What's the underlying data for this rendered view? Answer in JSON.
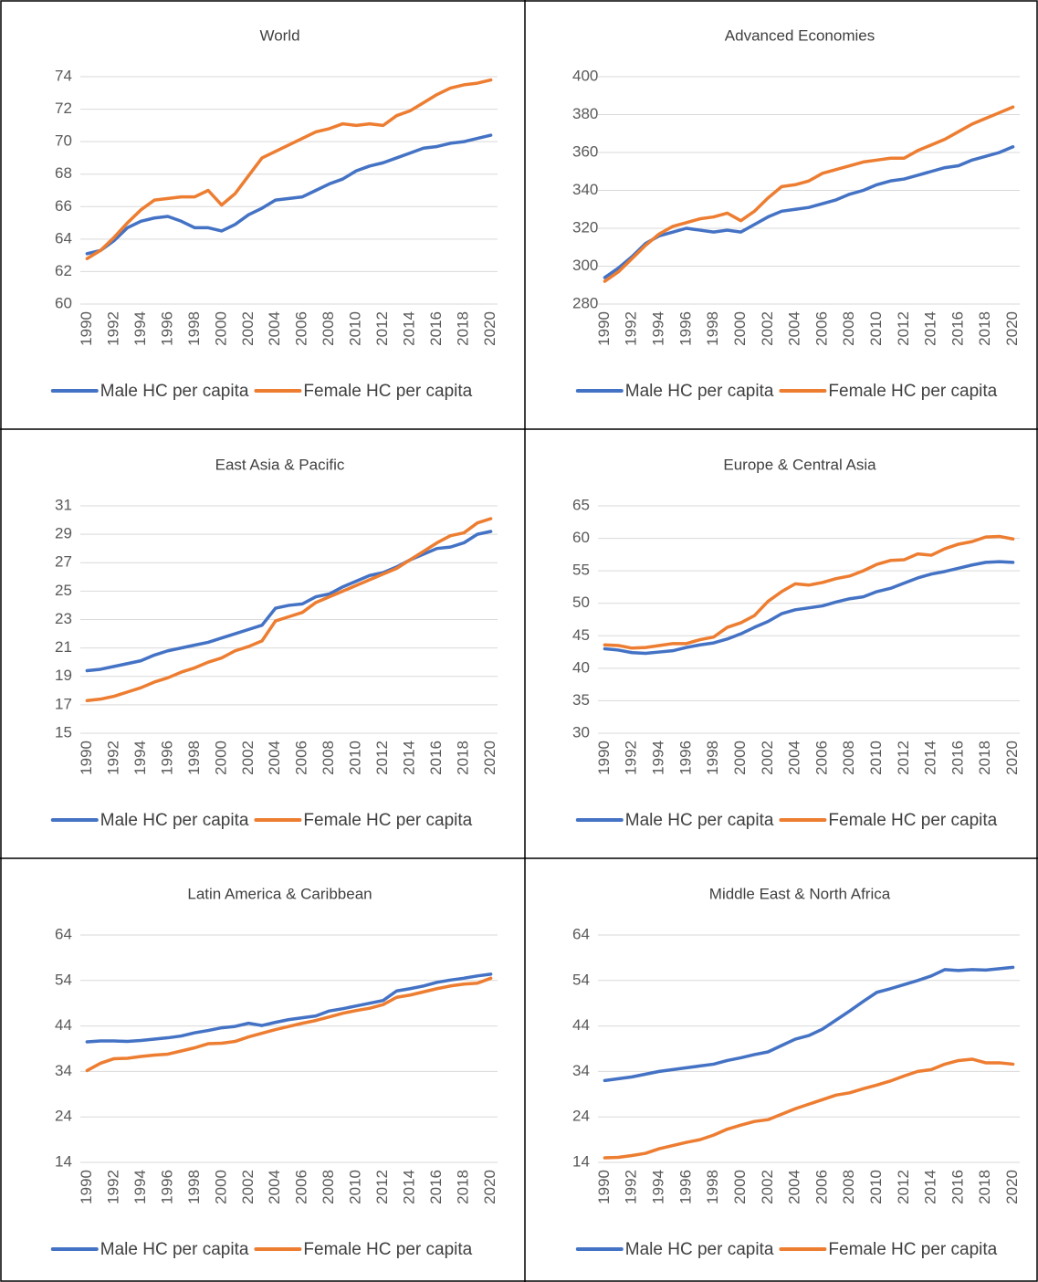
{
  "chart_data": [
    {
      "type": "line",
      "title": "World",
      "categories": [
        "1990",
        null,
        "1992",
        null,
        "1994",
        null,
        "1996",
        null,
        "1998",
        null,
        "2000",
        null,
        "2002",
        null,
        "2004",
        null,
        "2006",
        null,
        "2008",
        null,
        "2010",
        null,
        "2012",
        null,
        "2014",
        null,
        "2016",
        null,
        "2018",
        null,
        "2020"
      ],
      "series": [
        {
          "name": "Male HC per capita",
          "color": "#4472c4",
          "values": [
            63.1,
            63.3,
            63.9,
            64.7,
            65.1,
            65.3,
            65.4,
            65.1,
            64.7,
            64.7,
            64.5,
            64.9,
            65.5,
            65.9,
            66.4,
            66.5,
            66.6,
            67.0,
            67.4,
            67.7,
            68.2,
            68.5,
            68.7,
            69.0,
            69.3,
            69.6,
            69.7,
            69.9,
            70.0,
            70.2,
            70.4
          ]
        },
        {
          "name": "Female HC per capita",
          "color": "#ed7d31",
          "values": [
            62.8,
            63.3,
            64.1,
            65.0,
            65.8,
            66.4,
            66.5,
            66.6,
            66.6,
            67.0,
            66.1,
            66.8,
            67.9,
            69.0,
            69.4,
            69.8,
            70.2,
            70.6,
            70.8,
            71.1,
            71.0,
            71.1,
            71.0,
            71.6,
            71.9,
            72.4,
            72.9,
            73.3,
            73.5,
            73.6,
            73.8
          ]
        }
      ],
      "ylim": [
        60,
        74
      ],
      "yticks": [
        60,
        62,
        64,
        66,
        68,
        70,
        72,
        74
      ],
      "grid": true,
      "legend": "bottom"
    },
    {
      "type": "line",
      "title": "Advanced Economies",
      "categories": [
        "1990",
        null,
        "1992",
        null,
        "1994",
        null,
        "1996",
        null,
        "1998",
        null,
        "2000",
        null,
        "2002",
        null,
        "2004",
        null,
        "2006",
        null,
        "2008",
        null,
        "2010",
        null,
        "2012",
        null,
        "2014",
        null,
        "2016",
        null,
        "2018",
        null,
        "2020"
      ],
      "series": [
        {
          "name": "Male HC per capita",
          "color": "#4472c4",
          "values": [
            294,
            299,
            305,
            312,
            316,
            318,
            320,
            319,
            318,
            319,
            318,
            322,
            326,
            329,
            330,
            331,
            333,
            335,
            338,
            340,
            343,
            345,
            346,
            348,
            350,
            352,
            353,
            356,
            358,
            360,
            363
          ]
        },
        {
          "name": "Female HC per capita",
          "color": "#ed7d31",
          "values": [
            292,
            297,
            304,
            311,
            317,
            321,
            323,
            325,
            326,
            328,
            324,
            329,
            336,
            342,
            343,
            345,
            349,
            351,
            353,
            355,
            356,
            357,
            357,
            361,
            364,
            367,
            371,
            375,
            378,
            381,
            384
          ]
        }
      ],
      "ylim": [
        280,
        400
      ],
      "yticks": [
        280,
        300,
        320,
        340,
        360,
        380,
        400
      ],
      "grid": true,
      "legend": "bottom"
    },
    {
      "type": "line",
      "title": "East Asia & Pacific",
      "categories": [
        "1990",
        null,
        "1992",
        null,
        "1994",
        null,
        "1996",
        null,
        "1998",
        null,
        "2000",
        null,
        "2002",
        null,
        "2004",
        null,
        "2006",
        null,
        "2008",
        null,
        "2010",
        null,
        "2012",
        null,
        "2014",
        null,
        "2016",
        null,
        "2018",
        null,
        "2020"
      ],
      "series": [
        {
          "name": "Male HC per capita",
          "color": "#4472c4",
          "values": [
            19.4,
            19.5,
            19.7,
            19.9,
            20.1,
            20.5,
            20.8,
            21.0,
            21.2,
            21.4,
            21.7,
            22.0,
            22.3,
            22.6,
            23.8,
            24.0,
            24.1,
            24.6,
            24.8,
            25.3,
            25.7,
            26.1,
            26.3,
            26.7,
            27.2,
            27.6,
            28.0,
            28.1,
            28.4,
            29.0,
            29.2
          ]
        },
        {
          "name": "Female HC per capita",
          "color": "#ed7d31",
          "values": [
            17.3,
            17.4,
            17.6,
            17.9,
            18.2,
            18.6,
            18.9,
            19.3,
            19.6,
            20.0,
            20.3,
            20.8,
            21.1,
            21.5,
            22.9,
            23.2,
            23.5,
            24.2,
            24.6,
            25.0,
            25.4,
            25.8,
            26.2,
            26.6,
            27.2,
            27.8,
            28.4,
            28.9,
            29.1,
            29.8,
            30.1
          ]
        }
      ],
      "ylim": [
        15,
        31
      ],
      "yticks": [
        15,
        17,
        19,
        21,
        23,
        25,
        27,
        29,
        31
      ],
      "grid": true,
      "legend": "bottom"
    },
    {
      "type": "line",
      "title": "Europe & Central Asia",
      "categories": [
        "1990",
        null,
        "1992",
        null,
        "1994",
        null,
        "1996",
        null,
        "1998",
        null,
        "2000",
        null,
        "2002",
        null,
        "2004",
        null,
        "2006",
        null,
        "2008",
        null,
        "2010",
        null,
        "2012",
        null,
        "2014",
        null,
        "2016",
        null,
        "2018",
        null,
        "2020"
      ],
      "series": [
        {
          "name": "Male HC per capita",
          "color": "#4472c4",
          "values": [
            43.0,
            42.8,
            42.4,
            42.3,
            42.5,
            42.7,
            43.2,
            43.6,
            43.9,
            44.5,
            45.3,
            46.3,
            47.2,
            48.4,
            49.0,
            49.3,
            49.6,
            50.2,
            50.7,
            51.0,
            51.8,
            52.3,
            53.1,
            53.9,
            54.5,
            54.9,
            55.4,
            55.9,
            56.3,
            56.4,
            56.3
          ]
        },
        {
          "name": "Female HC per capita",
          "color": "#ed7d31",
          "values": [
            43.6,
            43.5,
            43.1,
            43.2,
            43.5,
            43.8,
            43.8,
            44.4,
            44.8,
            46.3,
            47.0,
            48.1,
            50.3,
            51.8,
            53.0,
            52.8,
            53.2,
            53.8,
            54.2,
            55.0,
            56.0,
            56.6,
            56.7,
            57.6,
            57.4,
            58.4,
            59.1,
            59.5,
            60.2,
            60.3,
            59.9
          ]
        }
      ],
      "ylim": [
        30,
        65
      ],
      "yticks": [
        30,
        35,
        40,
        45,
        50,
        55,
        60,
        65
      ],
      "grid": true,
      "legend": "bottom"
    },
    {
      "type": "line",
      "title": "Latin America & Caribbean",
      "categories": [
        "1990",
        null,
        "1992",
        null,
        "1994",
        null,
        "1996",
        null,
        "1998",
        null,
        "2000",
        null,
        "2002",
        null,
        "2004",
        null,
        "2006",
        null,
        "2008",
        null,
        "2010",
        null,
        "2012",
        null,
        "2014",
        null,
        "2016",
        null,
        "2018",
        null,
        "2020"
      ],
      "series": [
        {
          "name": "Male HC per capita",
          "color": "#4472c4",
          "values": [
            40.5,
            40.7,
            40.7,
            40.6,
            40.8,
            41.1,
            41.4,
            41.8,
            42.5,
            43.0,
            43.6,
            43.9,
            44.6,
            44.1,
            44.8,
            45.4,
            45.8,
            46.2,
            47.3,
            47.8,
            48.4,
            49.0,
            49.6,
            51.7,
            52.2,
            52.8,
            53.6,
            54.1,
            54.5,
            55.0,
            55.4
          ]
        },
        {
          "name": "Female HC per capita",
          "color": "#ed7d31",
          "values": [
            34.2,
            35.8,
            36.8,
            36.9,
            37.3,
            37.6,
            37.8,
            38.5,
            39.2,
            40.1,
            40.2,
            40.6,
            41.6,
            42.4,
            43.2,
            43.9,
            44.6,
            45.2,
            46.0,
            46.8,
            47.4,
            47.9,
            48.7,
            50.3,
            50.8,
            51.5,
            52.2,
            52.8,
            53.2,
            53.4,
            54.5
          ]
        }
      ],
      "ylim": [
        14,
        64
      ],
      "yticks": [
        14,
        24,
        34,
        44,
        54,
        64
      ],
      "grid": true,
      "legend": "bottom"
    },
    {
      "type": "line",
      "title": "Middle East & North Africa",
      "categories": [
        "1990",
        null,
        "1992",
        null,
        "1994",
        null,
        "1996",
        null,
        "1998",
        null,
        "2000",
        null,
        "2002",
        null,
        "2004",
        null,
        "2006",
        null,
        "2008",
        null,
        "2010",
        null,
        "2012",
        null,
        "2014",
        null,
        "2016",
        null,
        "2018",
        null,
        "2020"
      ],
      "series": [
        {
          "name": "Male HC per capita",
          "color": "#4472c4",
          "values": [
            32.0,
            32.4,
            32.8,
            33.4,
            34.0,
            34.4,
            34.8,
            35.2,
            35.6,
            36.4,
            37.0,
            37.7,
            38.3,
            39.7,
            41.1,
            41.9,
            43.3,
            45.3,
            47.3,
            49.4,
            51.4,
            52.2,
            53.1,
            54.0,
            55.0,
            56.4,
            56.2,
            56.4,
            56.3,
            56.6,
            56.9
          ]
        },
        {
          "name": "Female HC per capita",
          "color": "#ed7d31",
          "values": [
            15.0,
            15.1,
            15.5,
            16.0,
            17.0,
            17.7,
            18.4,
            19.0,
            20.0,
            21.3,
            22.2,
            23.0,
            23.4,
            24.6,
            25.8,
            26.8,
            27.8,
            28.8,
            29.3,
            30.2,
            31.0,
            31.9,
            33.0,
            34.0,
            34.4,
            35.6,
            36.4,
            36.7,
            35.9,
            35.9,
            35.6
          ]
        }
      ],
      "ylim": [
        14,
        64
      ],
      "yticks": [
        14,
        24,
        34,
        44,
        54,
        64
      ],
      "grid": true,
      "legend": "bottom"
    }
  ]
}
